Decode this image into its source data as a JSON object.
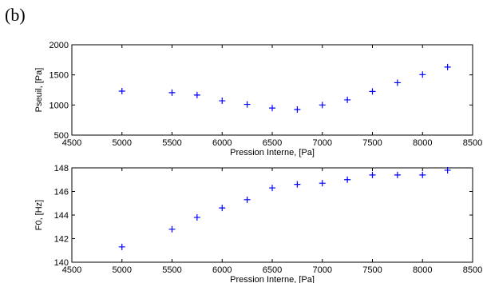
{
  "panel_label": "(b)",
  "chart_data": [
    {
      "type": "scatter",
      "xlabel": "Pression Interne, [Pa]",
      "ylabel": "Pseuil, [Pa]",
      "xlim": [
        4500,
        8500
      ],
      "ylim": [
        500,
        2000
      ],
      "xticks": [
        4500,
        5000,
        5500,
        6000,
        6500,
        7000,
        7500,
        8000,
        8500
      ],
      "yticks": [
        500,
        1000,
        1500,
        2000
      ],
      "marker": "+",
      "color": "#0000ff",
      "grid": false,
      "x": [
        5000,
        5500,
        5750,
        6000,
        6250,
        6500,
        6750,
        7000,
        7250,
        7500,
        7750,
        8000,
        8250
      ],
      "y": [
        1230,
        1205,
        1165,
        1070,
        1010,
        950,
        925,
        1000,
        1085,
        1225,
        1370,
        1505,
        1630
      ]
    },
    {
      "type": "scatter",
      "xlabel": "Pression Interne, [Pa]",
      "ylabel": "F0, [Hz]",
      "xlim": [
        4500,
        8500
      ],
      "ylim": [
        140,
        148
      ],
      "xticks": [
        4500,
        5000,
        5500,
        6000,
        6500,
        7000,
        7500,
        8000,
        8500
      ],
      "yticks": [
        140,
        142,
        144,
        146,
        148
      ],
      "marker": "+",
      "color": "#0000ff",
      "grid": false,
      "x": [
        5000,
        5500,
        5750,
        6000,
        6250,
        6500,
        6750,
        7000,
        7250,
        7500,
        7750,
        8000,
        8250
      ],
      "y": [
        141.3,
        142.8,
        143.8,
        144.6,
        145.3,
        146.3,
        146.6,
        146.7,
        147.0,
        147.4,
        147.4,
        147.4,
        147.8
      ]
    }
  ]
}
